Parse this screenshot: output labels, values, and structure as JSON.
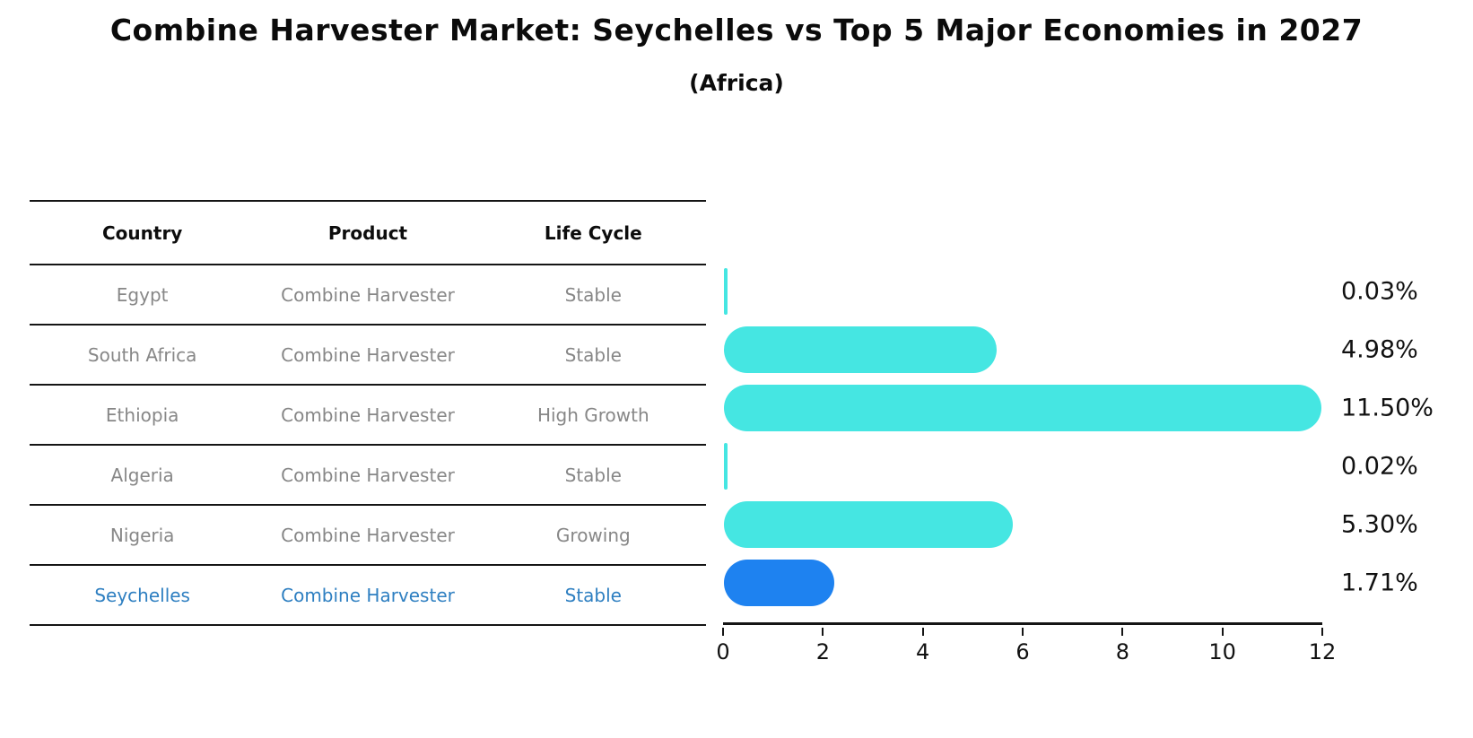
{
  "title": "Combine Harvester Market: Seychelles vs Top 5 Major Economies in 2027",
  "subtitle": "(Africa)",
  "table": {
    "headers": [
      "Country",
      "Product",
      "Life Cycle"
    ],
    "rows": [
      {
        "country": "Egypt",
        "product": "Combine Harvester",
        "life_cycle": "Stable",
        "value_label": "0.03%"
      },
      {
        "country": "South Africa",
        "product": "Combine Harvester",
        "life_cycle": "Stable",
        "value_label": "4.98%"
      },
      {
        "country": "Ethiopia",
        "product": "Combine Harvester",
        "life_cycle": "High Growth",
        "value_label": "11.50%"
      },
      {
        "country": "Algeria",
        "product": "Combine Harvester",
        "life_cycle": "Stable",
        "value_label": "0.02%"
      },
      {
        "country": "Nigeria",
        "product": "Combine Harvester",
        "life_cycle": "Growing",
        "value_label": "5.30%"
      },
      {
        "country": "Seychelles",
        "product": "Combine Harvester",
        "life_cycle": "Stable",
        "value_label": "1.71%"
      }
    ]
  },
  "chart_data": {
    "type": "bar",
    "orientation": "horizontal",
    "title": "Combine Harvester Market: Seychelles vs Top 5 Major Economies in 2027",
    "subtitle": "(Africa)",
    "categories": [
      "Egypt",
      "South Africa",
      "Ethiopia",
      "Algeria",
      "Nigeria",
      "Seychelles"
    ],
    "values": [
      0.03,
      4.98,
      11.5,
      0.02,
      5.3,
      1.71
    ],
    "value_labels": [
      "0.03%",
      "4.98%",
      "11.50%",
      "0.02%",
      "5.30%",
      "1.71%"
    ],
    "xlabel": "",
    "ylabel": "",
    "xlim": [
      0,
      12
    ],
    "x_ticks": [
      0,
      2,
      4,
      6,
      8,
      10,
      12
    ],
    "grid": false,
    "legend": false,
    "bar_color": "#45E6E2",
    "highlight_color": "#1E82F0",
    "highlight_index": 5,
    "highlight_style": "dotted-border"
  },
  "colors": {
    "bar_cyan": "#45E6E2",
    "bar_blue": "#1E82F0",
    "highlight_text": "#2e7fc1",
    "table_text_gray": "#878787",
    "text_black": "#111111"
  }
}
